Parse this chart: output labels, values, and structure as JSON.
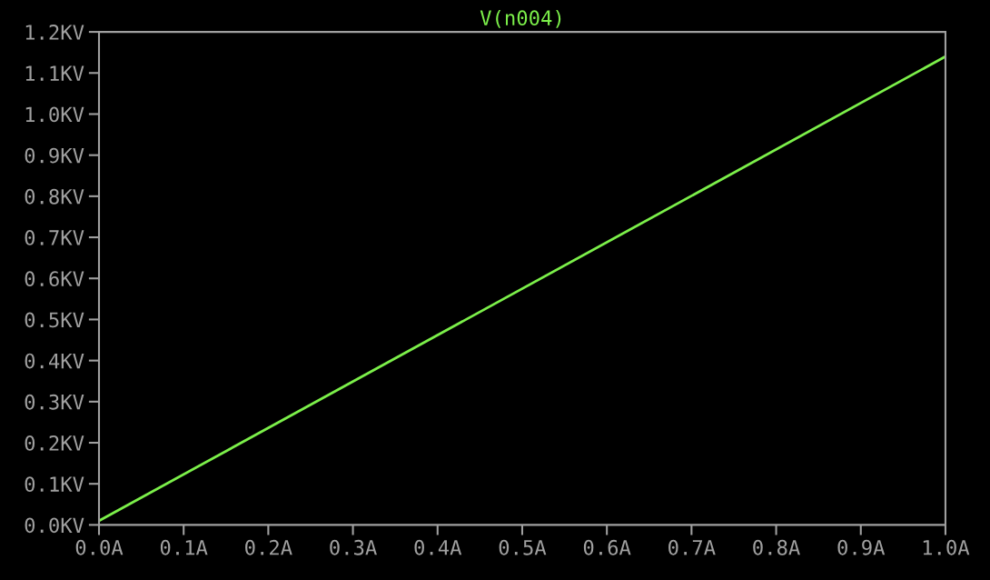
{
  "chart_data": {
    "type": "line",
    "x": [
      0.0,
      1.0
    ],
    "series": [
      {
        "name": "V(n004)",
        "color": "#7cf04a",
        "values": [
          0.01,
          1.14
        ]
      }
    ],
    "xlim": [
      0.0,
      1.0
    ],
    "xticks": [
      {
        "value": 0.0,
        "label": "0.0A"
      },
      {
        "value": 0.1,
        "label": "0.1A"
      },
      {
        "value": 0.2,
        "label": "0.2A"
      },
      {
        "value": 0.3,
        "label": "0.3A"
      },
      {
        "value": 0.4,
        "label": "0.4A"
      },
      {
        "value": 0.5,
        "label": "0.5A"
      },
      {
        "value": 0.6,
        "label": "0.6A"
      },
      {
        "value": 0.7,
        "label": "0.7A"
      },
      {
        "value": 0.8,
        "label": "0.8A"
      },
      {
        "value": 0.9,
        "label": "0.9A"
      },
      {
        "value": 1.0,
        "label": "1.0A"
      }
    ],
    "ylim": [
      0.0,
      1.2
    ],
    "yticks": [
      {
        "value": 0.0,
        "label": "0.0KV"
      },
      {
        "value": 0.1,
        "label": "0.1KV"
      },
      {
        "value": 0.2,
        "label": "0.2KV"
      },
      {
        "value": 0.3,
        "label": "0.3KV"
      },
      {
        "value": 0.4,
        "label": "0.4KV"
      },
      {
        "value": 0.5,
        "label": "0.5KV"
      },
      {
        "value": 0.6,
        "label": "0.6KV"
      },
      {
        "value": 0.7,
        "label": "0.7KV"
      },
      {
        "value": 0.8,
        "label": "0.8KV"
      },
      {
        "value": 0.9,
        "label": "0.9KV"
      },
      {
        "value": 1.0,
        "label": "1.0KV"
      },
      {
        "value": 1.1,
        "label": "1.1KV"
      },
      {
        "value": 1.2,
        "label": "1.2KV"
      }
    ],
    "grid": false,
    "line_style": "solid"
  }
}
